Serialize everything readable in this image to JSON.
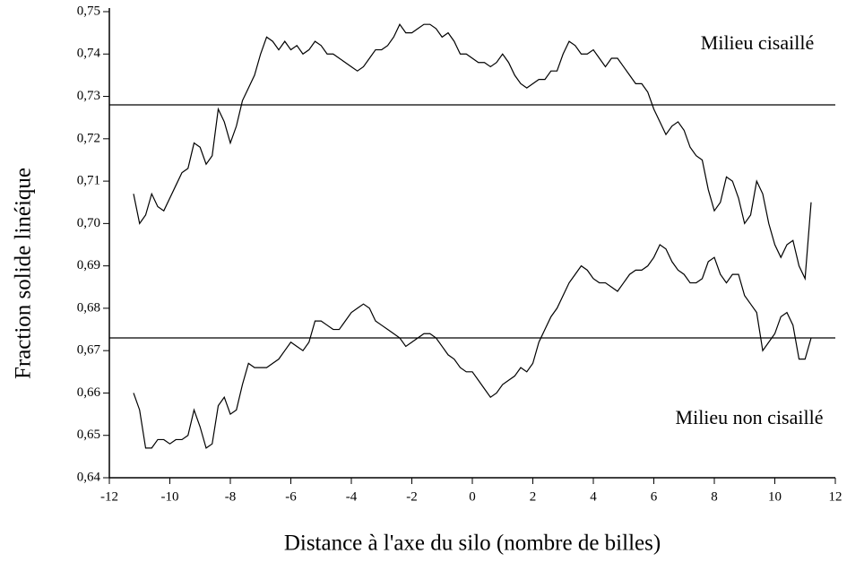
{
  "chart_data": {
    "type": "line",
    "x_label": "Distance à l'axe du silo (nombre de billes)",
    "y_label": "Fraction solide linéique",
    "annotations": [
      "Milieu cisaillé",
      "Milieu non cisaillé"
    ],
    "xlim": [
      -12,
      12
    ],
    "xticks": [
      -12,
      -10,
      -8,
      -6,
      -4,
      -2,
      0,
      2,
      4,
      6,
      8,
      10,
      12
    ],
    "ylim": [
      0.64,
      0.75
    ],
    "yticks": [
      {
        "value": 0.64,
        "label": "0,64"
      },
      {
        "value": 0.65,
        "label": "0,65"
      },
      {
        "value": 0.66,
        "label": "0,66"
      },
      {
        "value": 0.67,
        "label": "0,67"
      },
      {
        "value": 0.68,
        "label": "0,68"
      },
      {
        "value": 0.69,
        "label": "0,69"
      },
      {
        "value": 0.7,
        "label": "0,70"
      },
      {
        "value": 0.71,
        "label": "0,71"
      },
      {
        "value": 0.72,
        "label": "0,72"
      },
      {
        "value": 0.73,
        "label": "0,73"
      },
      {
        "value": 0.74,
        "label": "0,74"
      },
      {
        "value": 0.75,
        "label": "0,75"
      }
    ],
    "reference_lines": [
      0.728,
      0.673
    ],
    "x": [
      -11.2,
      -11,
      -10.8,
      -10.6,
      -10.4,
      -10.2,
      -10,
      -9.8,
      -9.6,
      -9.4,
      -9.2,
      -9,
      -8.8,
      -8.6,
      -8.4,
      -8.2,
      -8,
      -7.8,
      -7.6,
      -7.4,
      -7.2,
      -7,
      -6.8,
      -6.6,
      -6.4,
      -6.2,
      -6,
      -5.8,
      -5.6,
      -5.4,
      -5.2,
      -5,
      -4.8,
      -4.6,
      -4.4,
      -4.2,
      -4,
      -3.8,
      -3.6,
      -3.4,
      -3.2,
      -3,
      -2.8,
      -2.6,
      -2.4,
      -2.2,
      -2,
      -1.8,
      -1.6,
      -1.4,
      -1.2,
      -1,
      -0.8,
      -0.6,
      -0.4,
      -0.2,
      0,
      0.2,
      0.4,
      0.6,
      0.8,
      1,
      1.2,
      1.4,
      1.6,
      1.8,
      2,
      2.2,
      2.4,
      2.6,
      2.8,
      3,
      3.2,
      3.4,
      3.6,
      3.8,
      4,
      4.2,
      4.4,
      4.6,
      4.8,
      5,
      5.2,
      5.4,
      5.6,
      5.8,
      6,
      6.2,
      6.4,
      6.6,
      6.8,
      7,
      7.2,
      7.4,
      7.6,
      7.8,
      8,
      8.2,
      8.4,
      8.6,
      8.8,
      9,
      9.2,
      9.4,
      9.6,
      9.8,
      10,
      10.2,
      10.4,
      10.6,
      10.8,
      11,
      11.2
    ],
    "series": [
      {
        "color": "#000000",
        "values": [
          0.707,
          0.7,
          0.702,
          0.707,
          0.704,
          0.703,
          0.706,
          0.709,
          0.712,
          0.713,
          0.719,
          0.718,
          0.714,
          0.716,
          0.727,
          0.724,
          0.719,
          0.723,
          0.729,
          0.732,
          0.735,
          0.74,
          0.744,
          0.743,
          0.741,
          0.743,
          0.741,
          0.742,
          0.74,
          0.741,
          0.743,
          0.742,
          0.74,
          0.74,
          0.739,
          0.738,
          0.737,
          0.736,
          0.737,
          0.739,
          0.741,
          0.741,
          0.742,
          0.744,
          0.747,
          0.745,
          0.745,
          0.746,
          0.747,
          0.747,
          0.746,
          0.744,
          0.745,
          0.743,
          0.74,
          0.74,
          0.739,
          0.738,
          0.738,
          0.737,
          0.738,
          0.74,
          0.738,
          0.735,
          0.733,
          0.732,
          0.733,
          0.734,
          0.734,
          0.736,
          0.736,
          0.74,
          0.743,
          0.742,
          0.74,
          0.74,
          0.741,
          0.739,
          0.737,
          0.739,
          0.739,
          0.737,
          0.735,
          0.733,
          0.733,
          0.731,
          0.727,
          0.724,
          0.721,
          0.723,
          0.724,
          0.722,
          0.718,
          0.716,
          0.715,
          0.708,
          0.703,
          0.705,
          0.711,
          0.71,
          0.706,
          0.7,
          0.702,
          0.71,
          0.707,
          0.7,
          0.695,
          0.692,
          0.695,
          0.696,
          0.69,
          0.687,
          0.705
        ]
      },
      {
        "color": "#000000",
        "values": [
          0.66,
          0.656,
          0.647,
          0.647,
          0.649,
          0.649,
          0.648,
          0.649,
          0.649,
          0.65,
          0.656,
          0.652,
          0.647,
          0.648,
          0.657,
          0.659,
          0.655,
          0.656,
          0.662,
          0.667,
          0.666,
          0.666,
          0.666,
          0.667,
          0.668,
          0.67,
          0.672,
          0.671,
          0.67,
          0.672,
          0.677,
          0.677,
          0.676,
          0.675,
          0.675,
          0.677,
          0.679,
          0.68,
          0.681,
          0.68,
          0.677,
          0.676,
          0.675,
          0.674,
          0.673,
          0.671,
          0.672,
          0.673,
          0.674,
          0.674,
          0.673,
          0.671,
          0.669,
          0.668,
          0.666,
          0.665,
          0.665,
          0.663,
          0.661,
          0.659,
          0.66,
          0.662,
          0.663,
          0.664,
          0.666,
          0.665,
          0.667,
          0.672,
          0.675,
          0.678,
          0.68,
          0.683,
          0.686,
          0.688,
          0.69,
          0.689,
          0.687,
          0.686,
          0.686,
          0.685,
          0.684,
          0.686,
          0.688,
          0.689,
          0.689,
          0.69,
          0.692,
          0.695,
          0.694,
          0.691,
          0.689,
          0.688,
          0.686,
          0.686,
          0.687,
          0.691,
          0.692,
          0.688,
          0.686,
          0.688,
          0.688,
          0.683,
          0.681,
          0.679,
          0.67,
          0.672,
          0.674,
          0.678,
          0.679,
          0.676,
          0.668,
          0.668,
          0.673
        ]
      }
    ]
  }
}
